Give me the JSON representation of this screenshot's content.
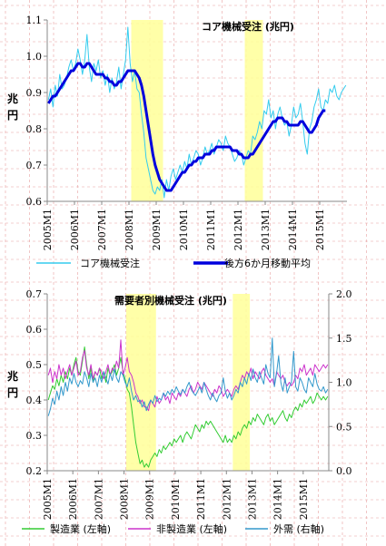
{
  "chart_data": [
    {
      "type": "line",
      "title": "コア機械受注 (兆円)",
      "ylabel": "兆円",
      "ylim": [
        0.6,
        1.1
      ],
      "yticks": [
        "0.6",
        "0.7",
        "0.8",
        "0.9",
        "1.0",
        "1.1"
      ],
      "ytick_values": [
        0.6,
        0.7,
        0.8,
        0.9,
        1.0,
        1.1
      ],
      "xlim": [
        "2005M1",
        "2015M12"
      ],
      "xticks": [
        "2005M1",
        "2006M1",
        "2007M1",
        "2008M1",
        "2009M1",
        "2010M1",
        "2011M1",
        "2012M1",
        "2013M1",
        "2014M1",
        "2015M1"
      ],
      "recessions": [
        [
          "2008M2",
          "2009M3"
        ],
        [
          "2012M4",
          "2012M11"
        ]
      ],
      "grid": true,
      "x_start": "2005M1",
      "series": [
        {
          "name": "コア機械受注",
          "color": "#33ccee",
          "values": [
            0.88,
            0.91,
            0.86,
            0.92,
            0.89,
            0.95,
            0.91,
            0.92,
            0.94,
            0.97,
            0.99,
            0.96,
            0.98,
            1.02,
            0.99,
            0.95,
            0.99,
            1.06,
            0.97,
            0.93,
            0.98,
            0.96,
            0.99,
            0.94,
            0.96,
            0.92,
            0.95,
            0.9,
            0.94,
            0.91,
            0.93,
            0.97,
            0.91,
            0.95,
            0.99,
            1.08,
            0.98,
            0.93,
            0.96,
            0.91,
            0.9,
            0.84,
            0.79,
            0.72,
            0.69,
            0.66,
            0.63,
            0.62,
            0.64,
            0.63,
            0.66,
            0.61,
            0.66,
            0.63,
            0.67,
            0.69,
            0.66,
            0.68,
            0.7,
            0.68,
            0.71,
            0.69,
            0.73,
            0.7,
            0.72,
            0.74,
            0.73,
            0.7,
            0.72,
            0.75,
            0.73,
            0.74,
            0.76,
            0.73,
            0.75,
            0.77,
            0.76,
            0.74,
            0.78,
            0.76,
            0.75,
            0.73,
            0.71,
            0.72,
            0.74,
            0.73,
            0.7,
            0.72,
            0.74,
            0.73,
            0.78,
            0.77,
            0.79,
            0.82,
            0.8,
            0.85,
            0.84,
            0.88,
            0.83,
            0.85,
            0.8,
            0.84,
            0.86,
            0.83,
            0.81,
            0.82,
            0.78,
            0.81,
            0.86,
            0.83,
            0.84,
            0.87,
            0.82,
            0.76,
            0.73,
            0.8,
            0.82,
            0.86,
            0.88,
            0.91,
            0.86,
            0.85,
            0.88,
            0.87,
            0.91,
            0.9,
            0.92,
            0.89,
            0.88,
            0.9,
            0.91,
            0.92
          ]
        },
        {
          "name": "後方6か月移動平均",
          "color": "#0000dd",
          "values": [
            0.87,
            0.88,
            0.89,
            0.89,
            0.9,
            0.91,
            0.92,
            0.93,
            0.94,
            0.95,
            0.96,
            0.96,
            0.97,
            0.98,
            0.98,
            0.97,
            0.97,
            0.98,
            0.98,
            0.97,
            0.96,
            0.95,
            0.95,
            0.95,
            0.95,
            0.94,
            0.94,
            0.93,
            0.93,
            0.92,
            0.92,
            0.93,
            0.93,
            0.94,
            0.95,
            0.96,
            0.96,
            0.96,
            0.96,
            0.95,
            0.94,
            0.92,
            0.89,
            0.85,
            0.81,
            0.77,
            0.73,
            0.7,
            0.68,
            0.66,
            0.65,
            0.64,
            0.63,
            0.63,
            0.63,
            0.64,
            0.65,
            0.66,
            0.67,
            0.68,
            0.68,
            0.69,
            0.7,
            0.7,
            0.71,
            0.71,
            0.72,
            0.72,
            0.72,
            0.73,
            0.73,
            0.73,
            0.74,
            0.74,
            0.75,
            0.75,
            0.75,
            0.75,
            0.75,
            0.75,
            0.75,
            0.74,
            0.74,
            0.74,
            0.73,
            0.73,
            0.72,
            0.72,
            0.72,
            0.73,
            0.73,
            0.74,
            0.75,
            0.76,
            0.77,
            0.78,
            0.79,
            0.8,
            0.81,
            0.82,
            0.82,
            0.83,
            0.83,
            0.83,
            0.82,
            0.82,
            0.81,
            0.81,
            0.81,
            0.81,
            0.81,
            0.82,
            0.82,
            0.81,
            0.8,
            0.79,
            0.79,
            0.8,
            0.81,
            0.83,
            0.84,
            0.85,
            0.85
          ]
        }
      ]
    },
    {
      "type": "line",
      "title": "需要者別機械受注 (兆円)",
      "ylabel": "兆円",
      "ylim": [
        0.2,
        0.7
      ],
      "yticks": [
        "0.2",
        "0.3",
        "0.4",
        "0.5",
        "0.6",
        "0.7"
      ],
      "ytick_values": [
        0.2,
        0.3,
        0.4,
        0.5,
        0.6,
        0.7
      ],
      "y2lim": [
        0.0,
        2.0
      ],
      "y2ticks": [
        "0.0",
        "0.5",
        "1.0",
        "1.5",
        "2.0"
      ],
      "y2tick_values": [
        0.0,
        0.5,
        1.0,
        1.5,
        2.0
      ],
      "xlim": [
        "2005M1",
        "2015M12"
      ],
      "xticks": [
        "2005M1",
        "2006M1",
        "2007M1",
        "2008M1",
        "2009M1",
        "2010M1",
        "2011M1",
        "2012M1",
        "2013M1",
        "2014M1",
        "2015M1"
      ],
      "recessions": [
        [
          "2008M2",
          "2009M3"
        ],
        [
          "2012M4",
          "2012M11"
        ]
      ],
      "grid": true,
      "x_start": "2005M1",
      "series": [
        {
          "name": "製造業 (左軸)",
          "color": "#33cc33",
          "axis": "left",
          "values": [
            0.4,
            0.42,
            0.44,
            0.43,
            0.46,
            0.44,
            0.47,
            0.45,
            0.48,
            0.46,
            0.49,
            0.47,
            0.5,
            0.52,
            0.48,
            0.47,
            0.51,
            0.55,
            0.5,
            0.46,
            0.49,
            0.45,
            0.48,
            0.47,
            0.49,
            0.46,
            0.48,
            0.45,
            0.49,
            0.47,
            0.48,
            0.5,
            0.47,
            0.49,
            0.52,
            0.48,
            0.46,
            0.43,
            0.42,
            0.38,
            0.33,
            0.28,
            0.25,
            0.22,
            0.23,
            0.21,
            0.22,
            0.21,
            0.23,
            0.24,
            0.25,
            0.24,
            0.26,
            0.25,
            0.27,
            0.26,
            0.27,
            0.28,
            0.27,
            0.29,
            0.28,
            0.29,
            0.3,
            0.28,
            0.3,
            0.31,
            0.3,
            0.29,
            0.31,
            0.33,
            0.32,
            0.31,
            0.33,
            0.32,
            0.34,
            0.33,
            0.34,
            0.33,
            0.32,
            0.31,
            0.3,
            0.29,
            0.28,
            0.3,
            0.28,
            0.29,
            0.28,
            0.3,
            0.29,
            0.31,
            0.3,
            0.32,
            0.33,
            0.32,
            0.34,
            0.33,
            0.35,
            0.34,
            0.36,
            0.35,
            0.34,
            0.33,
            0.35,
            0.36,
            0.34,
            0.35,
            0.33,
            0.34,
            0.35,
            0.36,
            0.37,
            0.35,
            0.34,
            0.36,
            0.35,
            0.37,
            0.38,
            0.37,
            0.39,
            0.38,
            0.4,
            0.39,
            0.4,
            0.41,
            0.39,
            0.4,
            0.42,
            0.41,
            0.4,
            0.41,
            0.4,
            0.41
          ]
        },
        {
          "name": "非製造業 (左軸)",
          "color": "#cc33cc",
          "axis": "left",
          "values": [
            0.47,
            0.49,
            0.45,
            0.48,
            0.46,
            0.5,
            0.47,
            0.49,
            0.46,
            0.48,
            0.5,
            0.47,
            0.49,
            0.51,
            0.47,
            0.48,
            0.52,
            0.54,
            0.49,
            0.47,
            0.5,
            0.46,
            0.48,
            0.47,
            0.49,
            0.48,
            0.46,
            0.48,
            0.5,
            0.47,
            0.49,
            0.48,
            0.51,
            0.49,
            0.57,
            0.47,
            0.49,
            0.52,
            0.48,
            0.47,
            0.45,
            0.42,
            0.41,
            0.39,
            0.4,
            0.38,
            0.38,
            0.37,
            0.4,
            0.39,
            0.38,
            0.41,
            0.39,
            0.4,
            0.42,
            0.4,
            0.41,
            0.39,
            0.42,
            0.41,
            0.4,
            0.42,
            0.41,
            0.43,
            0.42,
            0.41,
            0.43,
            0.44,
            0.42,
            0.43,
            0.45,
            0.44,
            0.43,
            0.45,
            0.44,
            0.43,
            0.42,
            0.41,
            0.43,
            0.42,
            0.44,
            0.43,
            0.41,
            0.42,
            0.43,
            0.42,
            0.41,
            0.43,
            0.44,
            0.43,
            0.45,
            0.47,
            0.46,
            0.48,
            0.47,
            0.49,
            0.46,
            0.48,
            0.47,
            0.46,
            0.48,
            0.49,
            0.47,
            0.46,
            0.45,
            0.46,
            0.44,
            0.48,
            0.47,
            0.46,
            0.47,
            0.45,
            0.44,
            0.45,
            0.44,
            0.45,
            0.47,
            0.46,
            0.49,
            0.48,
            0.5,
            0.47,
            0.48,
            0.49,
            0.47,
            0.5,
            0.49,
            0.48,
            0.49,
            0.5,
            0.49,
            0.5
          ]
        },
        {
          "name": "外需 (右軸)",
          "color": "#3399cc",
          "axis": "right",
          "values": [
            0.62,
            0.7,
            0.82,
            0.75,
            0.9,
            0.8,
            0.95,
            0.85,
            1.0,
            0.9,
            1.05,
            0.98,
            1.1,
            1.0,
            0.95,
            1.02,
            0.98,
            1.12,
            1.05,
            0.95,
            1.1,
            1.0,
            1.05,
            0.95,
            1.08,
            1.0,
            1.12,
            1.05,
            0.98,
            1.1,
            1.02,
            1.15,
            1.05,
            1.0,
            1.12,
            1.08,
            1.0,
            0.95,
            1.05,
            0.9,
            0.8,
            0.85,
            0.78,
            0.8,
            0.72,
            0.78,
            0.68,
            0.75,
            0.8,
            0.76,
            0.85,
            0.78,
            0.82,
            0.8,
            0.88,
            0.84,
            0.9,
            0.86,
            0.92,
            0.88,
            0.95,
            0.9,
            0.86,
            0.92,
            0.88,
            0.95,
            1.0,
            0.92,
            0.88,
            0.85,
            0.9,
            0.95,
            0.88,
            1.0,
            0.92,
            0.85,
            0.8,
            0.88,
            0.82,
            0.78,
            0.85,
            0.88,
            1.05,
            0.9,
            0.82,
            0.88,
            0.8,
            0.85,
            0.92,
            0.88,
            1.0,
            0.95,
            1.05,
            0.98,
            1.1,
            1.02,
            1.15,
            1.05,
            1.0,
            1.12,
            1.05,
            0.98,
            1.2,
            1.1,
            1.05,
            1.5,
            0.95,
            1.1,
            1.3,
            1.0,
            0.9,
            1.05,
            0.88,
            0.95,
            1.0,
            1.35,
            0.95,
            0.9,
            1.05,
            1.0,
            0.92,
            0.88,
            1.05,
            1.0,
            0.95,
            1.1,
            0.98,
            0.92,
            0.9,
            0.95,
            0.88,
            0.92
          ]
        }
      ]
    }
  ]
}
